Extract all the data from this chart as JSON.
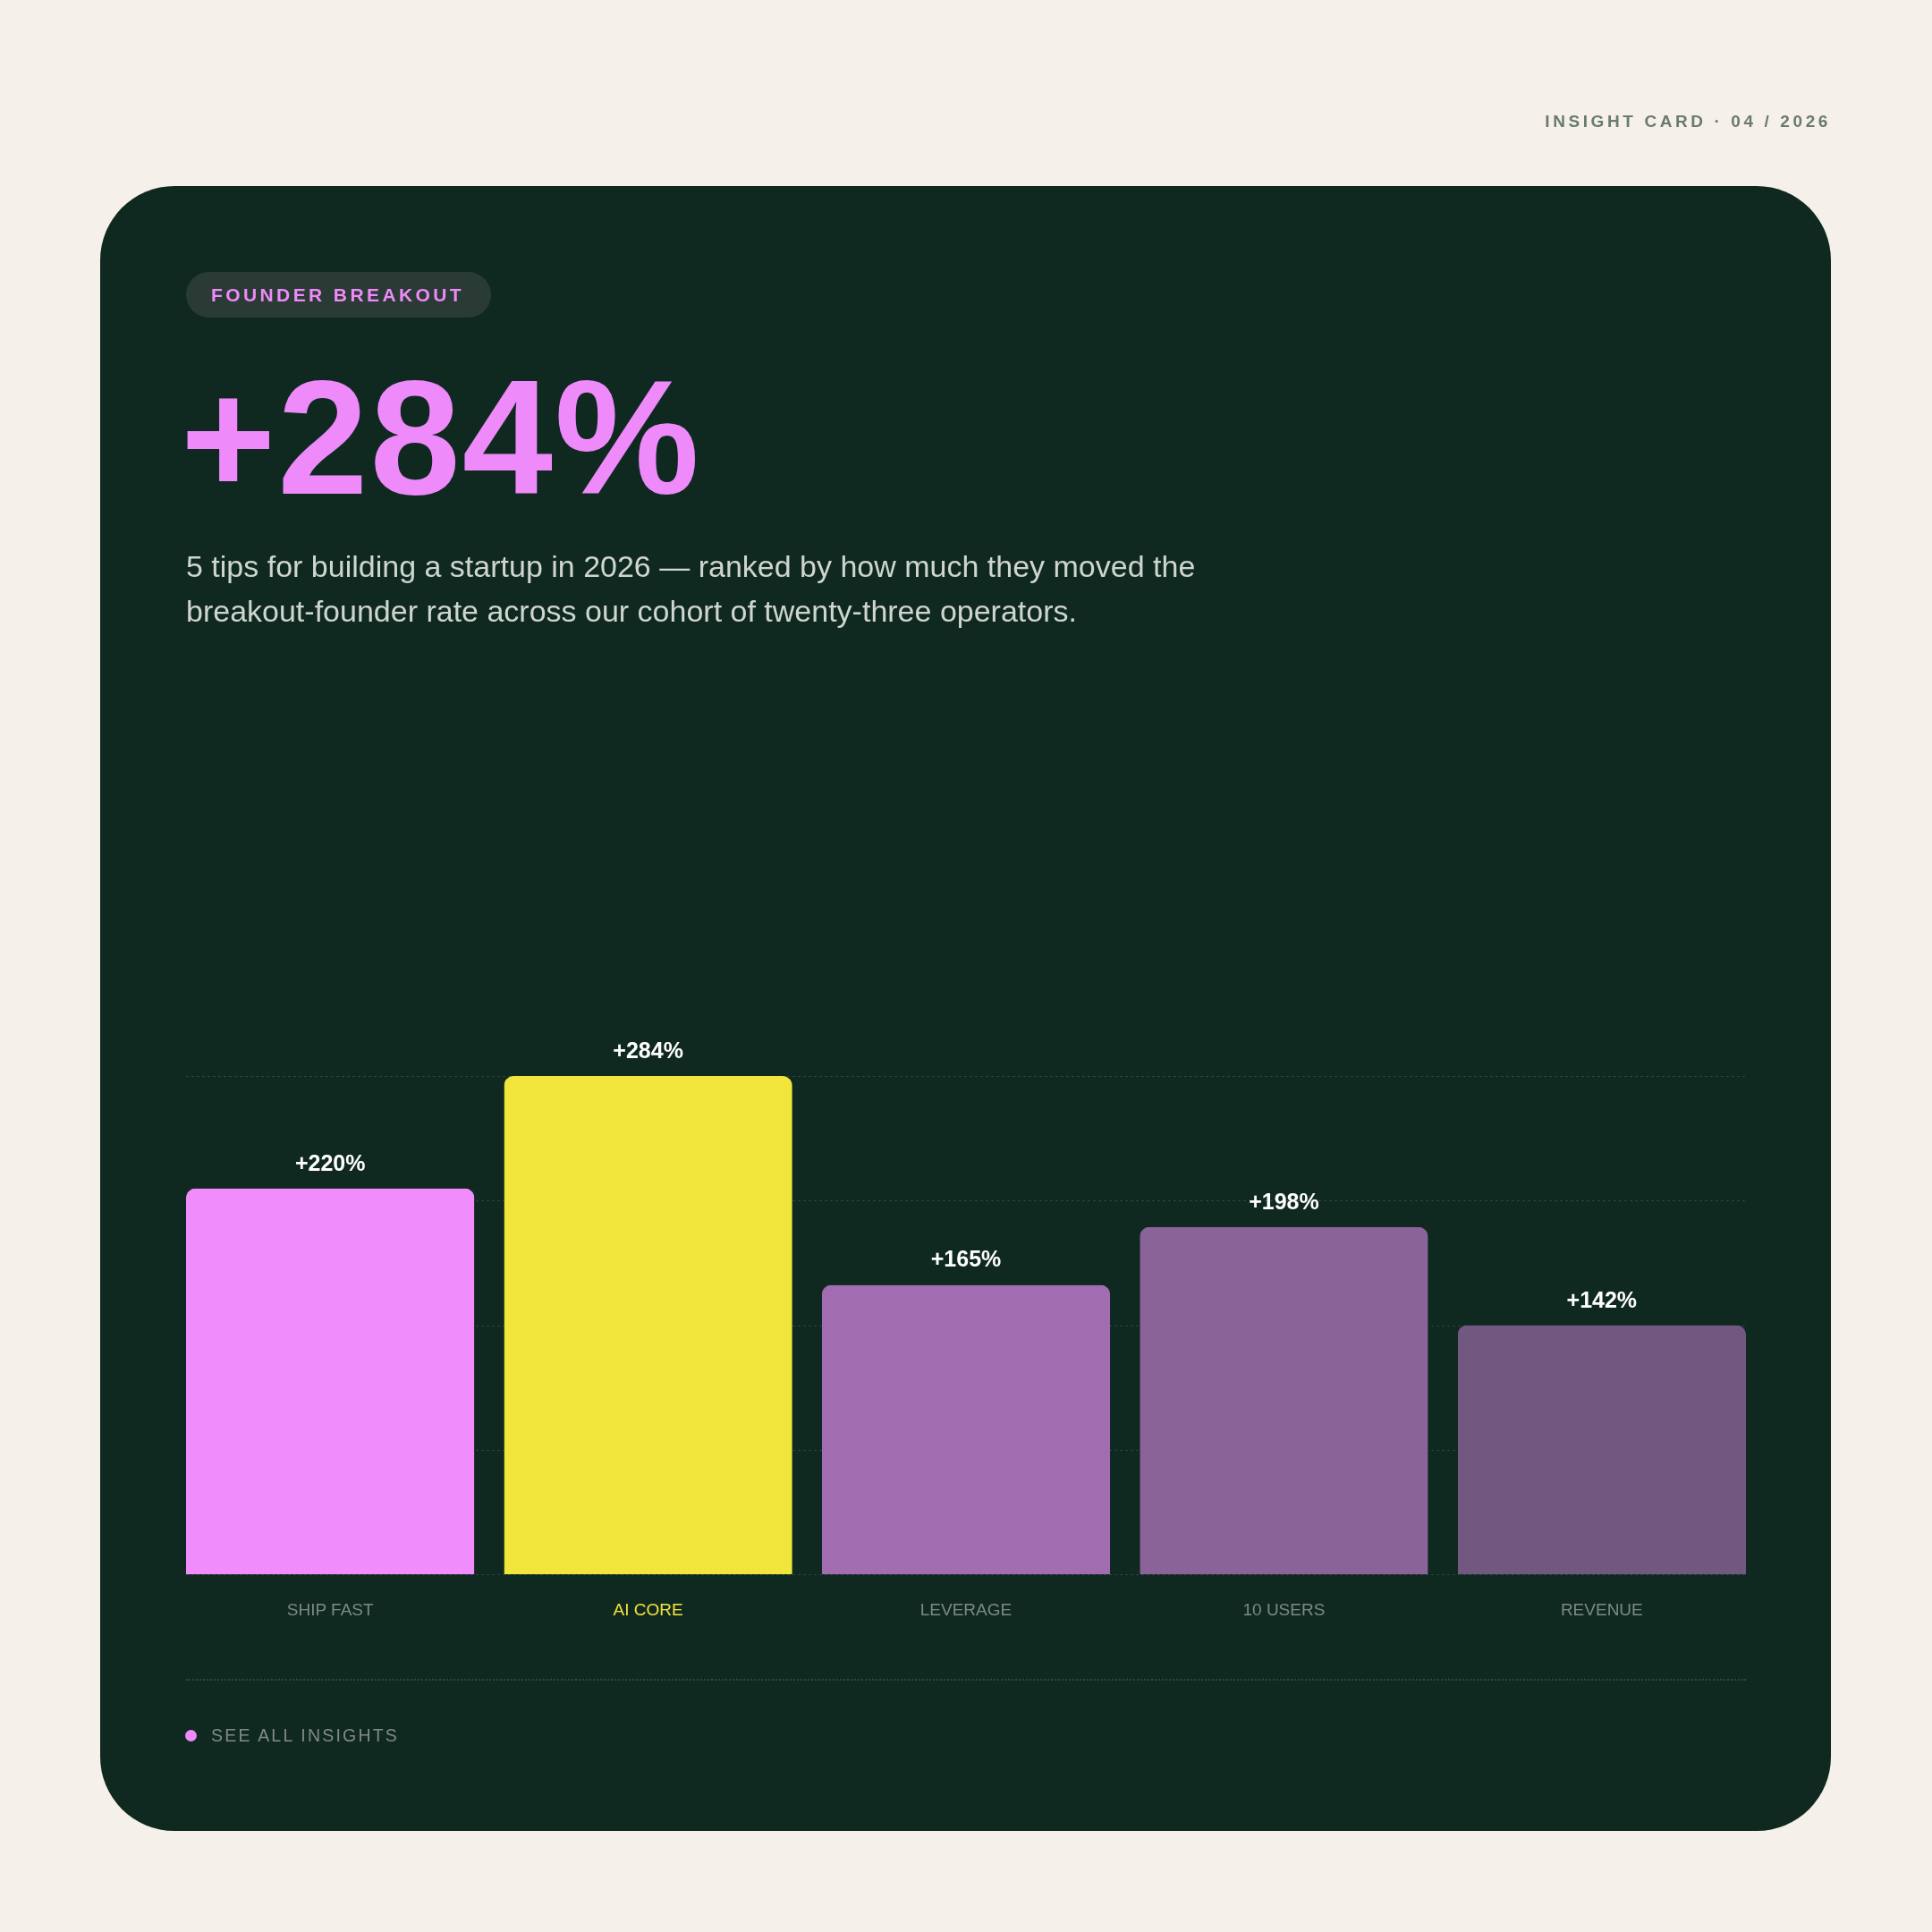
{
  "chart_data": {
    "type": "bar",
    "title": "+284%",
    "subtitle": "5 tips for building a startup in 2026 — ranked by how much they moved the breakout-founder rate across our cohort of twenty-three operators.",
    "categories": [
      "SHIP FAST",
      "AI CORE",
      "LEVERAGE",
      "10 USERS",
      "REVENUE"
    ],
    "values": [
      220,
      284,
      165,
      198,
      142
    ],
    "colors": [
      "#f08cfc",
      "#f1e43a",
      "#a26cb0",
      "#8a6398",
      "#725880"
    ],
    "value_labels": [
      "+220%",
      "+284%",
      "+165%",
      "+198%",
      "+142%"
    ],
    "ylim": [
      0,
      284
    ],
    "yticks": [
      0,
      71,
      142,
      213,
      284
    ],
    "grid": "y",
    "tick_labels": "x",
    "annotations": [
      "INSIGHT CARD · 04 / 2026",
      "FOUNDER BREAKOUT",
      "SEE ALL INSIGHTS"
    ]
  }
}
